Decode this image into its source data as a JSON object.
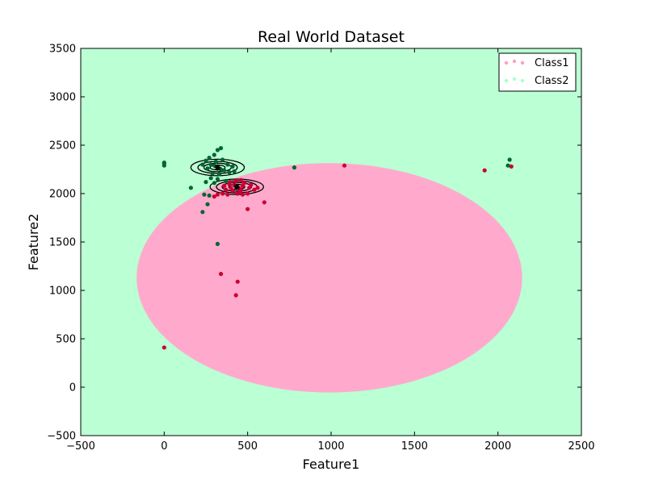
{
  "chart_data": {
    "type": "scatter",
    "title": "Real World Dataset",
    "xlabel": "Feature1",
    "ylabel": "Feature2",
    "xlim": [
      -500,
      2500
    ],
    "ylim": [
      -500,
      3500
    ],
    "xticks": [
      -500,
      0,
      500,
      1000,
      1500,
      2000,
      2500
    ],
    "yticks": [
      -500,
      0,
      500,
      1000,
      1500,
      2000,
      2500,
      3000,
      3500
    ],
    "grid": false,
    "legend_position": "top-right",
    "background_region_color": "#bbffd4",
    "decision_region": {
      "label": "Class1",
      "color": "#ffaacc",
      "shape": "ellipse",
      "center": [
        990,
        1130
      ],
      "semi_axes": [
        1155,
        1185
      ]
    },
    "series": [
      {
        "name": "Class1",
        "legend_color": "#ff9fbf",
        "point_color": "#cc0033",
        "mean": [
          435,
          2070
        ],
        "contour_radii": [
          [
            48,
            27
          ],
          [
            88,
            45
          ],
          [
            122,
            62
          ],
          [
            160,
            80
          ]
        ],
        "points": [
          [
            435,
            2070
          ],
          [
            420,
            2090
          ],
          [
            450,
            2050
          ],
          [
            400,
            2060
          ],
          [
            470,
            2080
          ],
          [
            460,
            2040
          ],
          [
            390,
            2100
          ],
          [
            510,
            2060
          ],
          [
            480,
            2110
          ],
          [
            410,
            2030
          ],
          [
            370,
            2040
          ],
          [
            440,
            2000
          ],
          [
            500,
            2000
          ],
          [
            520,
            2090
          ],
          [
            540,
            2040
          ],
          [
            360,
            2080
          ],
          [
            350,
            2000
          ],
          [
            380,
            1990
          ],
          [
            470,
            1990
          ],
          [
            430,
            2130
          ],
          [
            460,
            2140
          ],
          [
            320,
            1990
          ],
          [
            300,
            1970
          ],
          [
            500,
            1840
          ],
          [
            600,
            1910
          ],
          [
            1080,
            2290
          ],
          [
            2080,
            2280
          ],
          [
            1920,
            2240
          ],
          [
            340,
            1170
          ],
          [
            440,
            1090
          ],
          [
            430,
            950
          ],
          [
            0,
            410
          ],
          [
            560,
            2060
          ],
          [
            395,
            2120
          ],
          [
            455,
            2020
          ]
        ]
      },
      {
        "name": "Class2",
        "legend_color": "#aaffcc",
        "point_color": "#006633",
        "mean": [
          320,
          2270
        ],
        "contour_radii": [
          [
            45,
            25
          ],
          [
            82,
            44
          ],
          [
            118,
            62
          ],
          [
            160,
            85
          ]
        ],
        "points": [
          [
            320,
            2270
          ],
          [
            300,
            2290
          ],
          [
            340,
            2250
          ],
          [
            280,
            2300
          ],
          [
            360,
            2240
          ],
          [
            310,
            2330
          ],
          [
            330,
            2200
          ],
          [
            260,
            2260
          ],
          [
            380,
            2300
          ],
          [
            290,
            2210
          ],
          [
            350,
            2350
          ],
          [
            300,
            2400
          ],
          [
            320,
            2450
          ],
          [
            340,
            2470
          ],
          [
            270,
            2370
          ],
          [
            250,
            2340
          ],
          [
            230,
            2300
          ],
          [
            390,
            2220
          ],
          [
            410,
            2280
          ],
          [
            280,
            2160
          ],
          [
            320,
            2150
          ],
          [
            250,
            2120
          ],
          [
            270,
            1980
          ],
          [
            260,
            1890
          ],
          [
            240,
            1990
          ],
          [
            230,
            1810
          ],
          [
            160,
            2060
          ],
          [
            0,
            2320
          ],
          [
            0,
            2290
          ],
          [
            0,
            2310
          ],
          [
            320,
            1480
          ],
          [
            780,
            2270
          ],
          [
            2060,
            2290
          ],
          [
            2070,
            2350
          ],
          [
            370,
            2130
          ],
          [
            300,
            2110
          ],
          [
            420,
            2230
          ]
        ]
      }
    ]
  }
}
